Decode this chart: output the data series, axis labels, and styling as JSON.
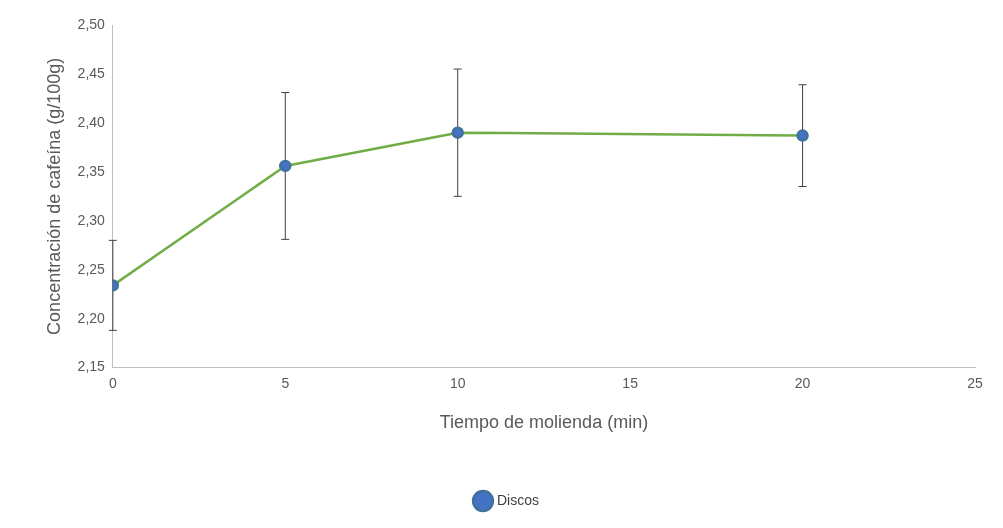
{
  "chart_data": {
    "type": "line",
    "xlabel": "Tiempo de molienda (min)",
    "ylabel": "Concentración de cafeína (g/100g)",
    "x": [
      0,
      5,
      10,
      20
    ],
    "series": [
      {
        "name": "Discos",
        "color": "#70ad47",
        "values": [
          2.234,
          2.356,
          2.39,
          2.387
        ],
        "errors": [
          0.046,
          0.075,
          0.065,
          0.052
        ]
      }
    ],
    "xlim": [
      0,
      25
    ],
    "xticks": [
      0,
      5,
      10,
      15,
      20,
      25
    ],
    "ylim": [
      2.15,
      2.5
    ],
    "yticks": [
      {
        "value": 2.15,
        "label": "2,15"
      },
      {
        "value": 2.2,
        "label": "2,20"
      },
      {
        "value": 2.25,
        "label": "2,25"
      },
      {
        "value": 2.3,
        "label": "2,30"
      },
      {
        "value": 2.35,
        "label": "2,35"
      },
      {
        "value": 2.4,
        "label": "2,40"
      },
      {
        "value": 2.45,
        "label": "2,45"
      },
      {
        "value": 2.5,
        "label": "2,50"
      }
    ],
    "grid": false,
    "legend": "bottom",
    "marker": "circle",
    "line_style": "solid"
  }
}
